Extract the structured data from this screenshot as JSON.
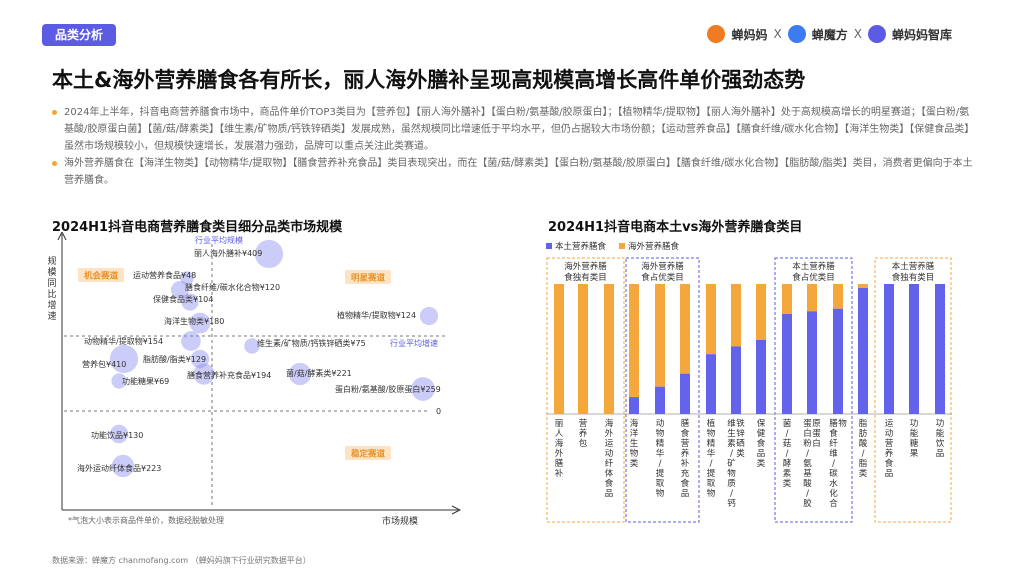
{
  "header": {
    "tag": "品类分析",
    "brands": [
      "蝉妈妈",
      "X",
      "蝉魔方",
      "X",
      "蝉妈妈智库"
    ],
    "brand_colors": [
      "#f07b20",
      "#3c7cf0",
      "#5b5be3"
    ]
  },
  "title": "本土&海外营养膳食各有所长，丽人海外膳补呈现高规模高增长高件单价强劲态势",
  "bullets": [
    "2024年上半年，抖音电商营养膳食市场中，商品件单价TOP3类目为【营养包】【丽人海外膳补】【蛋白粉/氨基酸/胶原蛋白】；【植物精华/提取物】【丽人海外膳补】处于高规模高增长的明星赛道；【蛋白粉/氨基酸/胶原蛋白菌】【菌/菇/酵素类】【维生素/矿物质/钙铁锌硒类】发展成熟，虽然规模同比增速低于平均水平，但仍占据较大市场份额；【运动营养食品】【膳食纤维/碳水化合物】【海洋生物类】【保健食品类】虽然市场规模较小，但规模快速增长，发展潜力强劲，品牌可以重点关注此类赛道。",
    "海外营养膳食在【海洋生物类】【动物精华/提取物】【膳食营养补充食品】类目表现突出，而在【菌/菇/酵素类】【蛋白粉/氨基酸/胶原蛋白】【膳食纤维/碳水化合物】【脂肪酸/脂类】类目，消费者更偏向于本土营养膳食。"
  ],
  "left_chart": {
    "title": "2024H1抖音电商营养膳食类目细分品类市场规模",
    "y_axis_label": "规模同比增速",
    "x_axis_label": "市场规模",
    "avg_scale_label": "行业平均规模",
    "avg_growth_label": "行业平均增速",
    "zero_label": "0",
    "quadrants": [
      "机会赛道",
      "明星赛道",
      "稳定赛道"
    ],
    "note": "*气泡大小表示商品件单价，数据经脱敏处理",
    "bubble_color": "#8f8ff0"
  },
  "right_chart": {
    "title": "2024H1抖音电商本土vs海外营养膳食类目",
    "legend": [
      "本土营养膳食",
      "海外营养膳食"
    ],
    "colors": {
      "local": "#6262ea",
      "overseas": "#f4a83c",
      "box": "#5b5be3",
      "box_overseas": "#f4a83c"
    },
    "groups": [
      "海外营养膳食独有类目",
      "海外营养膳食占优类目",
      "本土营养膳食占优类目",
      "本土营养膳食独有类目"
    ]
  },
  "chart_data": [
    {
      "type": "scatter",
      "title": "2024H1抖音电商营养膳食类目细分品类市场规模",
      "xlabel": "市场规模",
      "ylabel": "规模同比增速",
      "points": [
        {
          "name": "丽人海外膳补",
          "price": 409
        },
        {
          "name": "运动营养食品",
          "price": 48
        },
        {
          "name": "膳食纤维/碳水化合物",
          "price": 120
        },
        {
          "name": "保健食品类",
          "price": 104
        },
        {
          "name": "海洋生物类",
          "price": 180
        },
        {
          "name": "植物精华/提取物",
          "price": 124
        },
        {
          "name": "动物精华/提取物",
          "price": 154
        },
        {
          "name": "维生素/矿物质/钙铁锌硒类",
          "price": 75
        },
        {
          "name": "营养包",
          "price": 410
        },
        {
          "name": "脂肪酸/脂类",
          "price": 129
        },
        {
          "name": "膳食营养补充食品",
          "price": 194
        },
        {
          "name": "菌/菇/酵素类",
          "price": 221
        },
        {
          "name": "功能糖果",
          "price": 69
        },
        {
          "name": "蛋白粉/氨基酸/胶原蛋白",
          "price": 259
        },
        {
          "name": "功能饮品",
          "price": 130
        },
        {
          "name": "海外运动纤体食品",
          "price": 223
        }
      ],
      "currency": "¥"
    },
    {
      "type": "bar",
      "stacked": true,
      "title": "2024H1抖音电商本土vs海外营养膳食类目",
      "categories": [
        "丽人海外膳补",
        "营养包",
        "海外运动纤体食品",
        "海洋生物类",
        "动物精华/提取物",
        "膳食营养补充食品",
        "植物精华/提取物",
        "维生素/矿物质/钙铁锌硒类",
        "保健食品类",
        "菌/菇/酵素类",
        "蛋白粉/氨基酸/胶原蛋白",
        "膳食纤维/碳水化合物",
        "脂肪酸/脂类",
        "运动营养食品",
        "功能糖果",
        "功能饮品"
      ],
      "series": [
        {
          "name": "本土营养膳食",
          "values": [
            0,
            0,
            0,
            0.13,
            0.21,
            0.31,
            0.46,
            0.52,
            0.57,
            0.77,
            0.79,
            0.81,
            0.97,
            1,
            1,
            1
          ]
        },
        {
          "name": "海外营养膳食",
          "values": [
            1,
            1,
            1,
            0.87,
            0.79,
            0.69,
            0.54,
            0.48,
            0.43,
            0.23,
            0.21,
            0.19,
            0.03,
            0,
            0,
            0
          ]
        }
      ],
      "ylim": [
        0,
        1
      ]
    }
  ],
  "footer": "数据来源：蝉魔方  chanmofang.com  （蝉妈妈旗下行业研究数据平台）"
}
